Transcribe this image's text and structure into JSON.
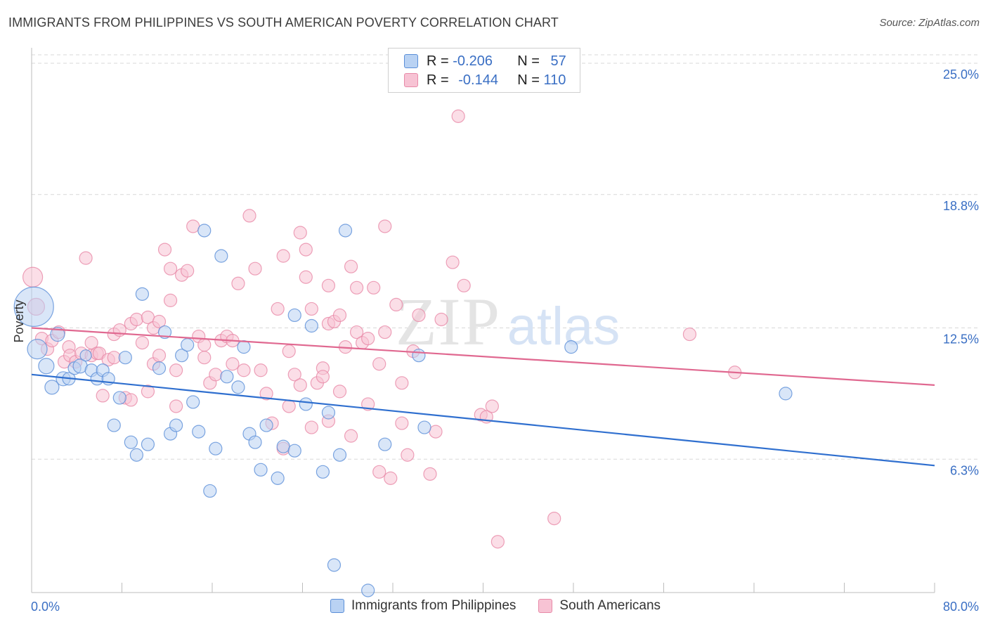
{
  "header": {
    "title": "IMMIGRANTS FROM PHILIPPINES VS SOUTH AMERICAN POVERTY CORRELATION CHART",
    "source": "Source: ZipAtlas.com"
  },
  "colors": {
    "blue": "#5b8fd8",
    "blue_fill": "#b9d2f3",
    "blue_line": "#2f6fcf",
    "pink": "#e88aa8",
    "pink_fill": "#f7c3d4",
    "pink_line": "#e06890",
    "axis_label": "#3a6fc4",
    "grid": "#d8d8d8"
  },
  "legend": {
    "rows": [
      {
        "r_label": "R = ",
        "r_value": "-0.206",
        "n_label": "N = ",
        "n_value": "57"
      },
      {
        "r_label": "R = ",
        "r_value": "-0.144",
        "n_label": "N = ",
        "n_value": "110"
      }
    ]
  },
  "bottom_legend": {
    "series1": "Immigrants from Philippines",
    "series2": "South Americans"
  },
  "chart_data": {
    "type": "scatter",
    "title": "IMMIGRANTS FROM PHILIPPINES VS SOUTH AMERICAN POVERTY CORRELATION CHART",
    "xlabel": "",
    "ylabel": "Poverty",
    "xlim": [
      0,
      80
    ],
    "ylim": [
      0,
      25.5
    ],
    "x_tick_labels": [
      "0.0%",
      "80.0%"
    ],
    "y_ticks": [
      6.3,
      12.5,
      18.8,
      25.0
    ],
    "y_tick_labels": [
      "6.3%",
      "12.5%",
      "18.8%",
      "25.0%"
    ],
    "grid": "horizontal dashed",
    "legend_position": "top-center",
    "watermark": {
      "zip": "ZIP",
      "atlas": "atlas"
    },
    "series": [
      {
        "name": "Immigrants from Philippines",
        "color": "#5b8fd8",
        "trend": {
          "x": [
            0,
            80
          ],
          "y": [
            10.3,
            6.0
          ]
        },
        "points": [
          [
            0.2,
            13.5,
            28
          ],
          [
            0.5,
            11.5,
            14
          ],
          [
            1.3,
            10.7,
            11
          ],
          [
            1.8,
            9.7,
            10
          ],
          [
            2.3,
            12.2,
            10
          ],
          [
            2.8,
            10.1,
            10
          ],
          [
            3.3,
            10.1,
            9
          ],
          [
            3.8,
            10.6,
            9
          ],
          [
            4.3,
            10.7,
            10
          ],
          [
            4.8,
            11.2,
            8
          ],
          [
            5.3,
            10.5,
            9
          ],
          [
            5.8,
            10.1,
            9
          ],
          [
            6.3,
            10.5,
            9
          ],
          [
            6.8,
            10.1,
            9
          ],
          [
            7.3,
            7.9,
            9
          ],
          [
            7.8,
            9.2,
            9
          ],
          [
            8.3,
            11.1,
            9
          ],
          [
            8.8,
            7.1,
            9
          ],
          [
            9.3,
            6.5,
            9
          ],
          [
            9.8,
            14.1,
            9
          ],
          [
            10.3,
            7.0,
            9
          ],
          [
            11.3,
            10.6,
            9
          ],
          [
            11.8,
            12.3,
            9
          ],
          [
            12.3,
            7.5,
            9
          ],
          [
            12.8,
            7.9,
            9
          ],
          [
            13.3,
            11.2,
            9
          ],
          [
            13.8,
            11.7,
            9
          ],
          [
            14.3,
            9.0,
            9
          ],
          [
            14.8,
            7.6,
            9
          ],
          [
            15.3,
            17.1,
            9
          ],
          [
            15.8,
            4.8,
            9
          ],
          [
            16.3,
            6.8,
            9
          ],
          [
            16.8,
            15.9,
            9
          ],
          [
            17.3,
            10.2,
            9
          ],
          [
            18.3,
            9.7,
            9
          ],
          [
            18.8,
            11.6,
            9
          ],
          [
            19.3,
            7.5,
            9
          ],
          [
            19.8,
            7.1,
            9
          ],
          [
            20.8,
            7.9,
            9
          ],
          [
            20.3,
            5.8,
            9
          ],
          [
            21.8,
            5.4,
            9
          ],
          [
            22.3,
            6.9,
            9
          ],
          [
            23.3,
            6.7,
            9
          ],
          [
            23.3,
            13.1,
            9
          ],
          [
            24.3,
            8.9,
            9
          ],
          [
            24.8,
            12.6,
            9
          ],
          [
            25.8,
            5.7,
            9
          ],
          [
            26.3,
            8.5,
            9
          ],
          [
            26.8,
            1.3,
            9
          ],
          [
            27.3,
            6.5,
            9
          ],
          [
            27.8,
            17.1,
            9
          ],
          [
            29.8,
            0.1,
            9
          ],
          [
            31.3,
            7.0,
            9
          ],
          [
            34.3,
            11.2,
            9
          ],
          [
            34.8,
            7.8,
            9
          ],
          [
            47.8,
            11.6,
            9
          ],
          [
            66.8,
            9.4,
            9
          ]
        ]
      },
      {
        "name": "South Americans",
        "color": "#e88aa8",
        "trend": {
          "x": [
            0,
            80
          ],
          "y": [
            12.5,
            9.8
          ]
        },
        "points": [
          [
            0.1,
            14.9,
            14
          ],
          [
            0.4,
            13.5,
            12
          ],
          [
            0.9,
            12.0,
            9
          ],
          [
            1.4,
            11.5,
            9
          ],
          [
            1.8,
            11.9,
            9
          ],
          [
            2.4,
            12.3,
            9
          ],
          [
            2.9,
            10.9,
            9
          ],
          [
            3.3,
            11.6,
            9
          ],
          [
            3.4,
            11.2,
            9
          ],
          [
            3.9,
            10.9,
            9
          ],
          [
            4.4,
            11.3,
            9
          ],
          [
            4.8,
            15.8,
            9
          ],
          [
            5.3,
            11.2,
            9
          ],
          [
            5.3,
            11.8,
            9
          ],
          [
            5.8,
            11.3,
            9
          ],
          [
            6.0,
            11.3,
            9
          ],
          [
            6.3,
            9.3,
            9
          ],
          [
            6.8,
            11.0,
            9
          ],
          [
            7.3,
            11.1,
            9
          ],
          [
            7.3,
            12.2,
            9
          ],
          [
            7.8,
            12.4,
            9
          ],
          [
            8.3,
            9.2,
            9
          ],
          [
            8.8,
            9.1,
            9
          ],
          [
            8.8,
            12.7,
            9
          ],
          [
            9.3,
            12.9,
            9
          ],
          [
            9.8,
            11.8,
            9
          ],
          [
            10.3,
            13.0,
            9
          ],
          [
            10.3,
            9.5,
            9
          ],
          [
            10.8,
            12.5,
            9
          ],
          [
            10.8,
            10.8,
            9
          ],
          [
            11.3,
            12.8,
            9
          ],
          [
            11.3,
            11.2,
            9
          ],
          [
            11.8,
            16.2,
            9
          ],
          [
            12.3,
            15.3,
            9
          ],
          [
            12.3,
            13.8,
            9
          ],
          [
            12.8,
            8.8,
            9
          ],
          [
            12.8,
            10.5,
            9
          ],
          [
            13.3,
            15.0,
            9
          ],
          [
            13.8,
            15.2,
            9
          ],
          [
            14.3,
            17.3,
            9
          ],
          [
            14.8,
            12.1,
            9
          ],
          [
            15.3,
            11.7,
            9
          ],
          [
            15.3,
            11.1,
            9
          ],
          [
            15.8,
            9.9,
            9
          ],
          [
            16.3,
            10.3,
            9
          ],
          [
            16.8,
            11.9,
            9
          ],
          [
            17.3,
            12.1,
            9
          ],
          [
            17.8,
            11.9,
            9
          ],
          [
            17.8,
            10.8,
            9
          ],
          [
            18.3,
            14.6,
            9
          ],
          [
            18.8,
            10.5,
            9
          ],
          [
            19.3,
            17.8,
            9
          ],
          [
            19.8,
            15.3,
            9
          ],
          [
            20.3,
            10.5,
            9
          ],
          [
            20.8,
            9.4,
            9
          ],
          [
            21.3,
            8.0,
            9
          ],
          [
            21.8,
            13.4,
            9
          ],
          [
            22.3,
            6.8,
            9
          ],
          [
            22.3,
            15.9,
            9
          ],
          [
            22.8,
            8.8,
            9
          ],
          [
            23.3,
            10.3,
            9
          ],
          [
            23.8,
            17.0,
            9
          ],
          [
            24.3,
            16.2,
            9
          ],
          [
            24.3,
            14.9,
            9
          ],
          [
            24.8,
            13.4,
            9
          ],
          [
            25.3,
            9.9,
            9
          ],
          [
            25.8,
            10.6,
            9
          ],
          [
            25.8,
            10.2,
            9
          ],
          [
            26.3,
            14.5,
            9
          ],
          [
            26.3,
            12.7,
            9
          ],
          [
            26.8,
            12.8,
            9
          ],
          [
            27.3,
            13.1,
            9
          ],
          [
            27.8,
            11.6,
            9
          ],
          [
            28.3,
            15.4,
            9
          ],
          [
            28.8,
            14.4,
            9
          ],
          [
            28.8,
            12.3,
            9
          ],
          [
            29.3,
            11.8,
            9
          ],
          [
            29.8,
            8.9,
            9
          ],
          [
            29.8,
            12.0,
            9
          ],
          [
            30.3,
            14.4,
            9
          ],
          [
            30.8,
            5.7,
            9
          ],
          [
            31.3,
            17.3,
            9
          ],
          [
            31.8,
            5.4,
            9
          ],
          [
            32.3,
            13.6,
            9
          ],
          [
            32.8,
            8.0,
            9
          ],
          [
            33.3,
            6.5,
            9
          ],
          [
            35.3,
            5.6,
            9
          ],
          [
            35.8,
            7.6,
            9
          ],
          [
            37.3,
            15.6,
            9
          ],
          [
            37.8,
            22.5,
            9
          ],
          [
            38.3,
            14.5,
            9
          ],
          [
            39.8,
            8.4,
            9
          ],
          [
            40.3,
            8.3,
            9
          ],
          [
            40.8,
            8.8,
            9
          ],
          [
            41.3,
            2.4,
            9
          ],
          [
            46.3,
            3.5,
            9
          ],
          [
            58.3,
            12.2,
            9
          ],
          [
            62.3,
            10.4,
            9
          ],
          [
            34.3,
            13.1,
            9
          ],
          [
            36.3,
            12.9,
            9
          ],
          [
            31.3,
            12.3,
            9
          ],
          [
            33.8,
            11.4,
            9
          ],
          [
            30.8,
            10.8,
            9
          ],
          [
            32.8,
            9.9,
            9
          ],
          [
            27.3,
            9.5,
            9
          ],
          [
            26.3,
            8.1,
            9
          ],
          [
            24.8,
            7.8,
            9
          ],
          [
            23.8,
            9.8,
            9
          ],
          [
            22.8,
            11.4,
            9
          ],
          [
            28.3,
            7.4,
            9
          ]
        ]
      }
    ]
  }
}
